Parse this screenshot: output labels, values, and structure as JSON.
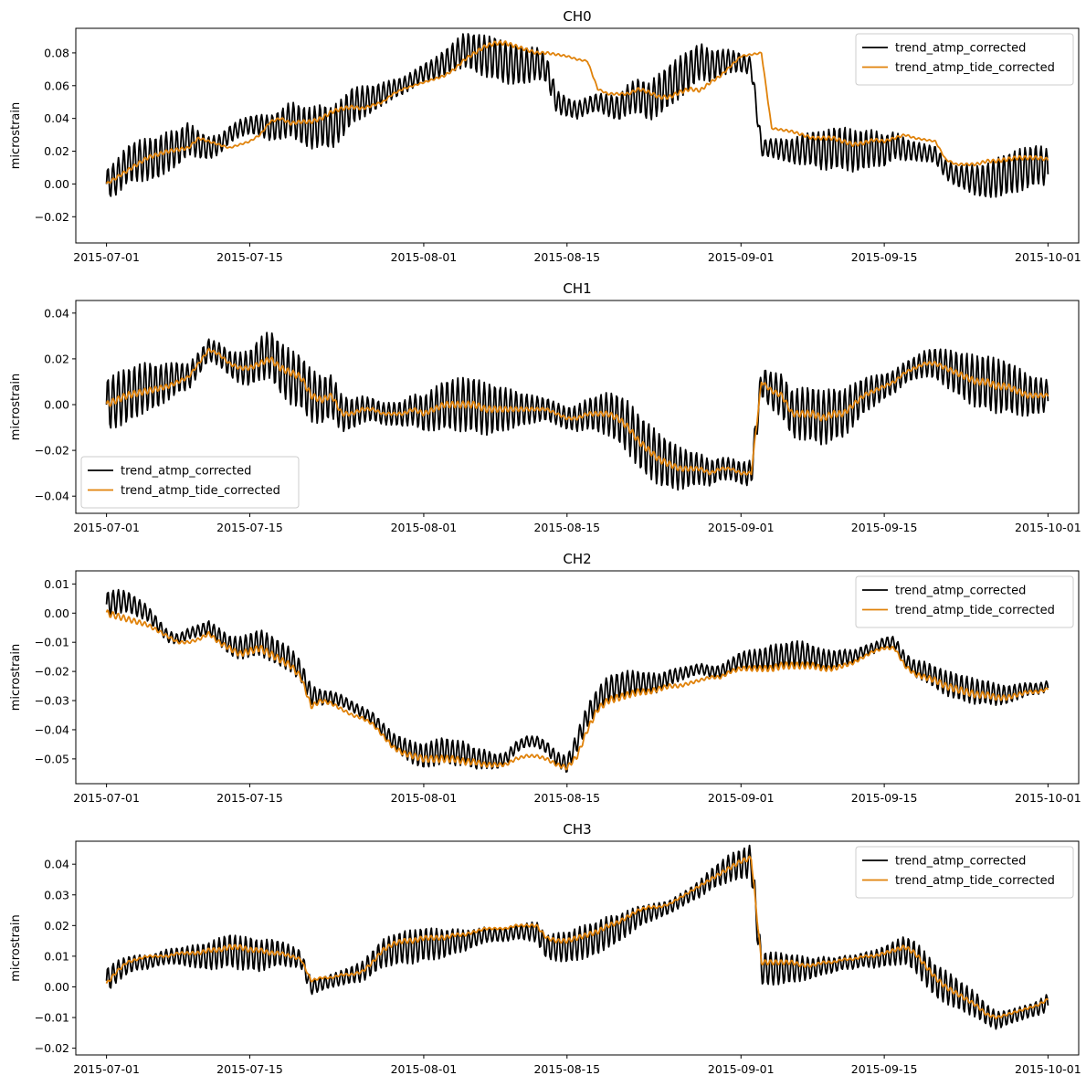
{
  "colors": {
    "series_0": "#000000",
    "series_1": "#e0820a",
    "axis": "#000000",
    "background": "#ffffff"
  },
  "chart_data": [
    {
      "type": "line",
      "title": "CH0",
      "xlabel": "",
      "ylabel": "microstrain",
      "xlim": [
        "2015-06-28",
        "2015-10-04"
      ],
      "ylim": [
        -0.036,
        0.095
      ],
      "xticks": [
        "2015-07-01",
        "2015-07-15",
        "2015-08-01",
        "2015-08-15",
        "2015-09-01",
        "2015-09-15",
        "2015-10-01"
      ],
      "yticks": [
        "−0.02",
        "0.00",
        "0.02",
        "0.04",
        "0.06",
        "0.08"
      ],
      "ytick_values": [
        -0.02,
        0.0,
        0.02,
        0.04,
        0.06,
        0.08
      ],
      "legend_position": "upper right",
      "grid": false,
      "sampling": "hourly, 2015-07-01 to 2015-10-01",
      "series": [
        {
          "name": "trend_atmp_corrected",
          "color": "#000000",
          "diurnal_amplitude": 0.013,
          "values": [
            0.0,
            0.004,
            0.012,
            0.014,
            0.015,
            0.016,
            0.02,
            0.022,
            0.028,
            0.024,
            0.022,
            0.024,
            0.03,
            0.034,
            0.036,
            0.036,
            0.034,
            0.036,
            0.04,
            0.036,
            0.034,
            0.036,
            0.034,
            0.04,
            0.048,
            0.05,
            0.052,
            0.055,
            0.058,
            0.06,
            0.064,
            0.068,
            0.07,
            0.074,
            0.078,
            0.082,
            0.08,
            0.078,
            0.077,
            0.074,
            0.073,
            0.072,
            0.074,
            0.07,
            0.05,
            0.047,
            0.045,
            0.048,
            0.05,
            0.048,
            0.046,
            0.052,
            0.054,
            0.05,
            0.055,
            0.06,
            0.065,
            0.07,
            0.075,
            0.072,
            0.074,
            0.075,
            0.074,
            0.072,
            0.022,
            0.022,
            0.021,
            0.02,
            0.021,
            0.022,
            0.02,
            0.022,
            0.022,
            0.02,
            0.021,
            0.022,
            0.02,
            0.024,
            0.021,
            0.02,
            0.019,
            0.018,
            0.009,
            0.005,
            0.004,
            0.002,
            0.002,
            0.004,
            0.006,
            0.008,
            0.01,
            0.012,
            0.01
          ]
        },
        {
          "name": "trend_atmp_tide_corrected",
          "color": "#e0820a",
          "diurnal_amplitude": 0.0012,
          "values": [
            0.0,
            0.004,
            0.008,
            0.012,
            0.016,
            0.018,
            0.02,
            0.021,
            0.022,
            0.028,
            0.026,
            0.024,
            0.022,
            0.024,
            0.026,
            0.03,
            0.038,
            0.04,
            0.037,
            0.038,
            0.038,
            0.04,
            0.044,
            0.046,
            0.047,
            0.046,
            0.048,
            0.05,
            0.055,
            0.058,
            0.06,
            0.062,
            0.064,
            0.066,
            0.07,
            0.076,
            0.08,
            0.084,
            0.086,
            0.086,
            0.084,
            0.082,
            0.08,
            0.08,
            0.079,
            0.078,
            0.076,
            0.075,
            0.058,
            0.055,
            0.055,
            0.055,
            0.058,
            0.056,
            0.053,
            0.053,
            0.056,
            0.058,
            0.057,
            0.062,
            0.066,
            0.072,
            0.078,
            0.079,
            0.08,
            0.034,
            0.033,
            0.032,
            0.03,
            0.028,
            0.028,
            0.028,
            0.026,
            0.024,
            0.025,
            0.027,
            0.026,
            0.028,
            0.03,
            0.028,
            0.027,
            0.026,
            0.015,
            0.012,
            0.012,
            0.012,
            0.014,
            0.014,
            0.015,
            0.016,
            0.016,
            0.016,
            0.015
          ]
        }
      ]
    },
    {
      "type": "line",
      "title": "CH1",
      "xlabel": "",
      "ylabel": "microstrain",
      "xlim": [
        "2015-06-28",
        "2015-10-04"
      ],
      "ylim": [
        -0.0475,
        0.0455
      ],
      "xticks": [
        "2015-07-01",
        "2015-07-15",
        "2015-08-01",
        "2015-08-15",
        "2015-09-01",
        "2015-09-15",
        "2015-10-01"
      ],
      "yticks": [
        "−0.04",
        "−0.02",
        "0.00",
        "0.02",
        "0.04"
      ],
      "ytick_values": [
        -0.04,
        -0.02,
        0.0,
        0.02,
        0.04
      ],
      "legend_position": "lower left",
      "grid": false,
      "sampling": "hourly, 2015-07-01 to 2015-10-01",
      "series": [
        {
          "name": "trend_atmp_corrected",
          "color": "#000000",
          "diurnal_amplitude": 0.012,
          "values": [
            0.0,
            0.002,
            0.004,
            0.006,
            0.008,
            0.008,
            0.01,
            0.012,
            0.012,
            0.018,
            0.024,
            0.022,
            0.018,
            0.016,
            0.016,
            0.02,
            0.022,
            0.016,
            0.012,
            0.01,
            0.004,
            0.002,
            0.004,
            -0.004,
            -0.004,
            -0.002,
            -0.002,
            -0.004,
            -0.004,
            -0.004,
            -0.002,
            -0.004,
            -0.002,
            0.0,
            0.0,
            0.0,
            0.0,
            -0.002,
            -0.002,
            -0.002,
            -0.002,
            -0.002,
            -0.002,
            -0.002,
            -0.004,
            -0.006,
            -0.006,
            -0.004,
            -0.004,
            -0.004,
            -0.006,
            -0.01,
            -0.016,
            -0.02,
            -0.024,
            -0.026,
            -0.028,
            -0.028,
            -0.028,
            -0.03,
            -0.028,
            -0.028,
            -0.03,
            -0.03,
            0.01,
            0.006,
            0.004,
            -0.004,
            -0.004,
            -0.004,
            -0.006,
            -0.004,
            -0.004,
            0.0,
            0.004,
            0.006,
            0.008,
            0.01,
            0.014,
            0.016,
            0.018,
            0.018,
            0.016,
            0.014,
            0.012,
            0.01,
            0.01,
            0.008,
            0.008,
            0.006,
            0.004,
            0.004,
            0.004
          ]
        },
        {
          "name": "trend_atmp_tide_corrected",
          "color": "#e0820a",
          "diurnal_amplitude": 0.0015,
          "values": [
            0.0,
            0.002,
            0.004,
            0.005,
            0.006,
            0.007,
            0.008,
            0.01,
            0.012,
            0.018,
            0.024,
            0.022,
            0.018,
            0.016,
            0.016,
            0.018,
            0.02,
            0.016,
            0.014,
            0.012,
            0.004,
            0.002,
            0.004,
            -0.004,
            -0.004,
            -0.002,
            -0.002,
            -0.004,
            -0.004,
            -0.004,
            -0.002,
            -0.004,
            -0.002,
            0.0,
            0.0,
            0.0,
            0.0,
            -0.002,
            -0.002,
            -0.002,
            -0.002,
            -0.002,
            -0.002,
            -0.002,
            -0.004,
            -0.006,
            -0.006,
            -0.004,
            -0.004,
            -0.004,
            -0.006,
            -0.01,
            -0.016,
            -0.02,
            -0.024,
            -0.026,
            -0.028,
            -0.028,
            -0.028,
            -0.03,
            -0.028,
            -0.028,
            -0.03,
            -0.03,
            0.01,
            0.006,
            0.004,
            -0.004,
            -0.004,
            -0.004,
            -0.006,
            -0.004,
            -0.004,
            0.0,
            0.004,
            0.006,
            0.008,
            0.01,
            0.014,
            0.016,
            0.018,
            0.018,
            0.016,
            0.014,
            0.012,
            0.01,
            0.01,
            0.008,
            0.008,
            0.006,
            0.004,
            0.004,
            0.004
          ]
        }
      ]
    },
    {
      "type": "line",
      "title": "CH2",
      "xlabel": "",
      "ylabel": "microstrain",
      "xlim": [
        "2015-06-28",
        "2015-10-04"
      ],
      "ylim": [
        -0.0585,
        0.0145
      ],
      "xticks": [
        "2015-07-01",
        "2015-07-15",
        "2015-08-01",
        "2015-08-15",
        "2015-09-01",
        "2015-09-15",
        "2015-10-01"
      ],
      "yticks": [
        "−0.05",
        "−0.04",
        "−0.03",
        "−0.02",
        "−0.01",
        "0.00",
        "0.01"
      ],
      "ytick_values": [
        -0.05,
        -0.04,
        -0.03,
        -0.02,
        -0.01,
        0.0,
        0.01
      ],
      "legend_position": "upper right",
      "grid": false,
      "sampling": "hourly, 2015-07-01 to 2015-10-01",
      "series": [
        {
          "name": "trend_atmp_corrected",
          "color": "#000000",
          "diurnal_amplitude": 0.0045,
          "values": [
            0.003,
            0.004,
            0.004,
            0.002,
            0.0,
            -0.004,
            -0.008,
            -0.009,
            -0.007,
            -0.006,
            -0.005,
            -0.008,
            -0.011,
            -0.012,
            -0.011,
            -0.01,
            -0.012,
            -0.014,
            -0.016,
            -0.02,
            -0.028,
            -0.029,
            -0.029,
            -0.03,
            -0.032,
            -0.034,
            -0.036,
            -0.04,
            -0.044,
            -0.046,
            -0.048,
            -0.049,
            -0.048,
            -0.047,
            -0.048,
            -0.048,
            -0.05,
            -0.05,
            -0.051,
            -0.05,
            -0.046,
            -0.044,
            -0.044,
            -0.046,
            -0.05,
            -0.052,
            -0.044,
            -0.035,
            -0.03,
            -0.026,
            -0.025,
            -0.024,
            -0.024,
            -0.024,
            -0.024,
            -0.022,
            -0.021,
            -0.02,
            -0.019,
            -0.02,
            -0.02,
            -0.018,
            -0.016,
            -0.016,
            -0.016,
            -0.015,
            -0.015,
            -0.014,
            -0.014,
            -0.015,
            -0.016,
            -0.016,
            -0.015,
            -0.015,
            -0.013,
            -0.012,
            -0.01,
            -0.01,
            -0.016,
            -0.019,
            -0.02,
            -0.022,
            -0.024,
            -0.025,
            -0.026,
            -0.027,
            -0.027,
            -0.028,
            -0.028,
            -0.027,
            -0.026,
            -0.026,
            -0.025
          ]
        },
        {
          "name": "trend_atmp_tide_corrected",
          "color": "#e0820a",
          "diurnal_amplitude": 0.0012,
          "values": [
            0.0,
            -0.001,
            -0.002,
            -0.003,
            -0.004,
            -0.006,
            -0.008,
            -0.01,
            -0.01,
            -0.009,
            -0.007,
            -0.01,
            -0.012,
            -0.014,
            -0.013,
            -0.012,
            -0.014,
            -0.016,
            -0.018,
            -0.022,
            -0.032,
            -0.03,
            -0.031,
            -0.033,
            -0.035,
            -0.036,
            -0.038,
            -0.042,
            -0.046,
            -0.048,
            -0.049,
            -0.05,
            -0.05,
            -0.05,
            -0.05,
            -0.051,
            -0.051,
            -0.052,
            -0.052,
            -0.052,
            -0.05,
            -0.049,
            -0.049,
            -0.05,
            -0.052,
            -0.053,
            -0.049,
            -0.04,
            -0.033,
            -0.03,
            -0.029,
            -0.028,
            -0.027,
            -0.027,
            -0.026,
            -0.025,
            -0.025,
            -0.024,
            -0.023,
            -0.022,
            -0.022,
            -0.02,
            -0.019,
            -0.019,
            -0.019,
            -0.019,
            -0.018,
            -0.018,
            -0.018,
            -0.018,
            -0.019,
            -0.019,
            -0.018,
            -0.017,
            -0.015,
            -0.013,
            -0.012,
            -0.012,
            -0.018,
            -0.021,
            -0.022,
            -0.023,
            -0.025,
            -0.026,
            -0.027,
            -0.028,
            -0.028,
            -0.029,
            -0.029,
            -0.028,
            -0.027,
            -0.027,
            -0.026
          ]
        }
      ]
    },
    {
      "type": "line",
      "title": "CH3",
      "xlabel": "",
      "ylabel": "microstrain",
      "xlim": [
        "2015-06-28",
        "2015-10-04"
      ],
      "ylim": [
        -0.0222,
        0.0475
      ],
      "xticks": [
        "2015-07-01",
        "2015-07-15",
        "2015-08-01",
        "2015-08-15",
        "2015-09-01",
        "2015-09-15",
        "2015-10-01"
      ],
      "yticks": [
        "−0.02",
        "−0.01",
        "0.00",
        "0.01",
        "0.02",
        "0.03",
        "0.04"
      ],
      "ytick_values": [
        -0.02,
        -0.01,
        0.0,
        0.01,
        0.02,
        0.03,
        0.04
      ],
      "legend_position": "upper right",
      "grid": false,
      "sampling": "hourly, 2015-07-01 to 2015-10-01",
      "series": [
        {
          "name": "trend_atmp_corrected",
          "color": "#000000",
          "diurnal_amplitude": 0.0055,
          "values": [
            0.002,
            0.005,
            0.007,
            0.008,
            0.008,
            0.009,
            0.01,
            0.01,
            0.01,
            0.01,
            0.01,
            0.011,
            0.012,
            0.011,
            0.011,
            0.01,
            0.011,
            0.011,
            0.01,
            0.009,
            0.0,
            0.001,
            0.002,
            0.003,
            0.004,
            0.005,
            0.008,
            0.011,
            0.012,
            0.013,
            0.013,
            0.014,
            0.014,
            0.014,
            0.015,
            0.015,
            0.016,
            0.017,
            0.017,
            0.017,
            0.018,
            0.018,
            0.018,
            0.013,
            0.013,
            0.013,
            0.014,
            0.015,
            0.016,
            0.018,
            0.019,
            0.021,
            0.023,
            0.024,
            0.025,
            0.026,
            0.028,
            0.03,
            0.032,
            0.035,
            0.037,
            0.039,
            0.04,
            0.041,
            0.006,
            0.006,
            0.006,
            0.006,
            0.006,
            0.006,
            0.007,
            0.007,
            0.008,
            0.008,
            0.009,
            0.009,
            0.01,
            0.011,
            0.012,
            0.01,
            0.006,
            0.002,
            0.0,
            -0.002,
            -0.004,
            -0.006,
            -0.009,
            -0.011,
            -0.01,
            -0.009,
            -0.008,
            -0.007,
            -0.005
          ]
        },
        {
          "name": "trend_atmp_tide_corrected",
          "color": "#e0820a",
          "diurnal_amplitude": 0.0008,
          "values": [
            0.001,
            0.005,
            0.008,
            0.009,
            0.01,
            0.01,
            0.01,
            0.011,
            0.011,
            0.011,
            0.012,
            0.012,
            0.013,
            0.013,
            0.012,
            0.012,
            0.011,
            0.011,
            0.01,
            0.009,
            0.002,
            0.003,
            0.003,
            0.004,
            0.004,
            0.005,
            0.008,
            0.012,
            0.014,
            0.015,
            0.015,
            0.016,
            0.016,
            0.016,
            0.017,
            0.017,
            0.018,
            0.019,
            0.019,
            0.019,
            0.02,
            0.02,
            0.02,
            0.016,
            0.015,
            0.015,
            0.016,
            0.017,
            0.018,
            0.02,
            0.021,
            0.023,
            0.025,
            0.026,
            0.026,
            0.027,
            0.029,
            0.031,
            0.033,
            0.035,
            0.037,
            0.039,
            0.041,
            0.042,
            0.008,
            0.008,
            0.008,
            0.008,
            0.007,
            0.007,
            0.008,
            0.008,
            0.009,
            0.009,
            0.01,
            0.01,
            0.011,
            0.012,
            0.013,
            0.011,
            0.007,
            0.003,
            0.0,
            -0.002,
            -0.004,
            -0.006,
            -0.009,
            -0.01,
            -0.009,
            -0.008,
            -0.007,
            -0.006,
            -0.004
          ]
        }
      ]
    }
  ]
}
